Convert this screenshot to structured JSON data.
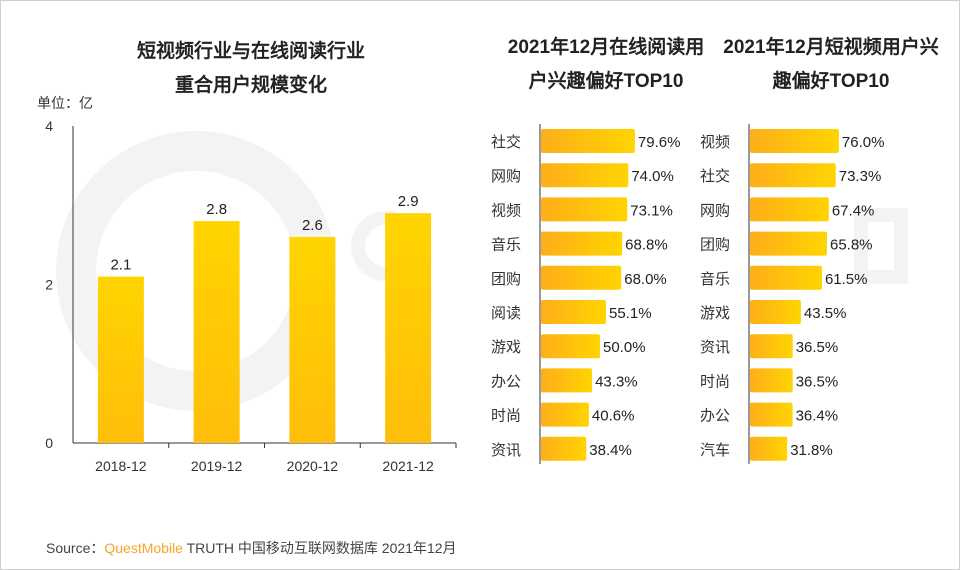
{
  "watermark": "QUESTMOBILE",
  "chart_data": [
    {
      "type": "bar",
      "title_lines": [
        "短视频行业与在线阅读行业",
        "重合用户规模变化"
      ],
      "unit_label": "单位：亿",
      "categories": [
        "2018-12",
        "2019-12",
        "2020-12",
        "2021-12"
      ],
      "values": [
        2.1,
        2.8,
        2.6,
        2.9
      ],
      "data_labels": [
        "2.1",
        "2.8",
        "2.6",
        "2.9"
      ],
      "ylim": [
        0,
        4
      ],
      "yticks": [
        "0",
        "2",
        "4"
      ],
      "color": "#FFC800"
    },
    {
      "type": "bar",
      "orientation": "horizontal",
      "title_lines": [
        "2021年12月在线阅读用",
        "户兴趣偏好TOP10"
      ],
      "categories": [
        "社交",
        "网购",
        "视频",
        "音乐",
        "团购",
        "阅读",
        "游戏",
        "办公",
        "时尚",
        "资讯"
      ],
      "values": [
        79.6,
        74.0,
        73.1,
        68.8,
        68.0,
        55.1,
        50.0,
        43.3,
        40.6,
        38.4
      ],
      "data_labels": [
        "79.6%",
        "74.0%",
        "73.1%",
        "68.8%",
        "68.0%",
        "55.1%",
        "50.0%",
        "43.3%",
        "40.6%",
        "38.4%"
      ]
    },
    {
      "type": "bar",
      "orientation": "horizontal",
      "title_lines": [
        "2021年12月短视频用户兴",
        "趣偏好TOP10"
      ],
      "categories": [
        "视频",
        "社交",
        "网购",
        "团购",
        "音乐",
        "游戏",
        "资讯",
        "时尚",
        "办公",
        "汽车"
      ],
      "values": [
        76.0,
        73.3,
        67.4,
        65.8,
        61.5,
        43.5,
        36.5,
        36.5,
        36.4,
        31.8
      ],
      "data_labels": [
        "76.0%",
        "73.3%",
        "67.4%",
        "65.8%",
        "61.5%",
        "43.5%",
        "36.5%",
        "36.5%",
        "36.4%",
        "31.8%"
      ]
    }
  ],
  "colors": {
    "bar_start": "#FFAE1A",
    "bar_end": "#FFD400",
    "brand": "#F5A623"
  },
  "source": {
    "prefix": "Source：",
    "brand": "QuestMobile",
    "text": " TRUTH 中国移动互联网数据库 2021年12月"
  }
}
